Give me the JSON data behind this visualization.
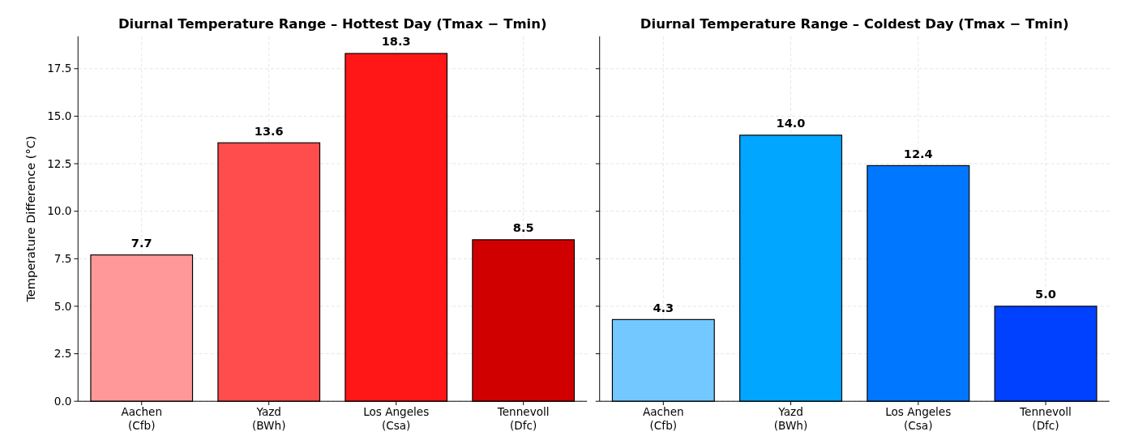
{
  "chart_data": [
    {
      "type": "bar",
      "title": "Diurnal Temperature Range – Hottest Day (Tmax − Tmin)",
      "ylabel": "Temperature Difference (°C)",
      "categories": [
        "Aachen\n(Cfb)",
        "Yazd\n(BWh)",
        "Los Angeles\n(Csa)",
        "Tennevoll\n(Dfc)"
      ],
      "values": [
        7.7,
        13.6,
        18.3,
        8.5
      ],
      "value_labels": [
        "7.7",
        "13.6",
        "18.3",
        "8.5"
      ],
      "colors": [
        "#ff9999",
        "#ff4c4c",
        "#ff1616",
        "#d00000"
      ],
      "ylim": [
        0,
        19.2
      ],
      "yticks": [
        {
          "value": 0,
          "label": "0.0"
        },
        2.5,
        {
          "value": 5,
          "label": "5.0"
        },
        7.5,
        {
          "value": 10,
          "label": "10.0"
        },
        12.5,
        {
          "value": 15,
          "label": "15.0"
        },
        17.5
      ],
      "grid": true
    },
    {
      "type": "bar",
      "title": "Diurnal Temperature Range – Coldest Day (Tmax − Tmin)",
      "categories": [
        "Aachen\n(Cfb)",
        "Yazd\n(BWh)",
        "Los Angeles\n(Csa)",
        "Tennevoll\n(Dfc)"
      ],
      "values": [
        4.3,
        14.0,
        12.4,
        5.0
      ],
      "value_labels": [
        "4.3",
        "14.0",
        "12.4",
        "5.0"
      ],
      "colors": [
        "#73c8ff",
        "#00a6ff",
        "#0077ff",
        "#0040ff"
      ],
      "ylim": [
        0,
        19.2
      ],
      "yticks": [
        {
          "value": 0,
          "label": null
        },
        {
          "value": 2.5,
          "label": null
        },
        {
          "value": 5,
          "label": null
        },
        {
          "value": 7.5,
          "label": null
        },
        {
          "value": 10,
          "label": null
        },
        {
          "value": 12.5,
          "label": null
        },
        {
          "value": 15,
          "label": null
        },
        {
          "value": 17.5,
          "label": null
        }
      ],
      "grid": true,
      "tick_labels": "x"
    }
  ]
}
